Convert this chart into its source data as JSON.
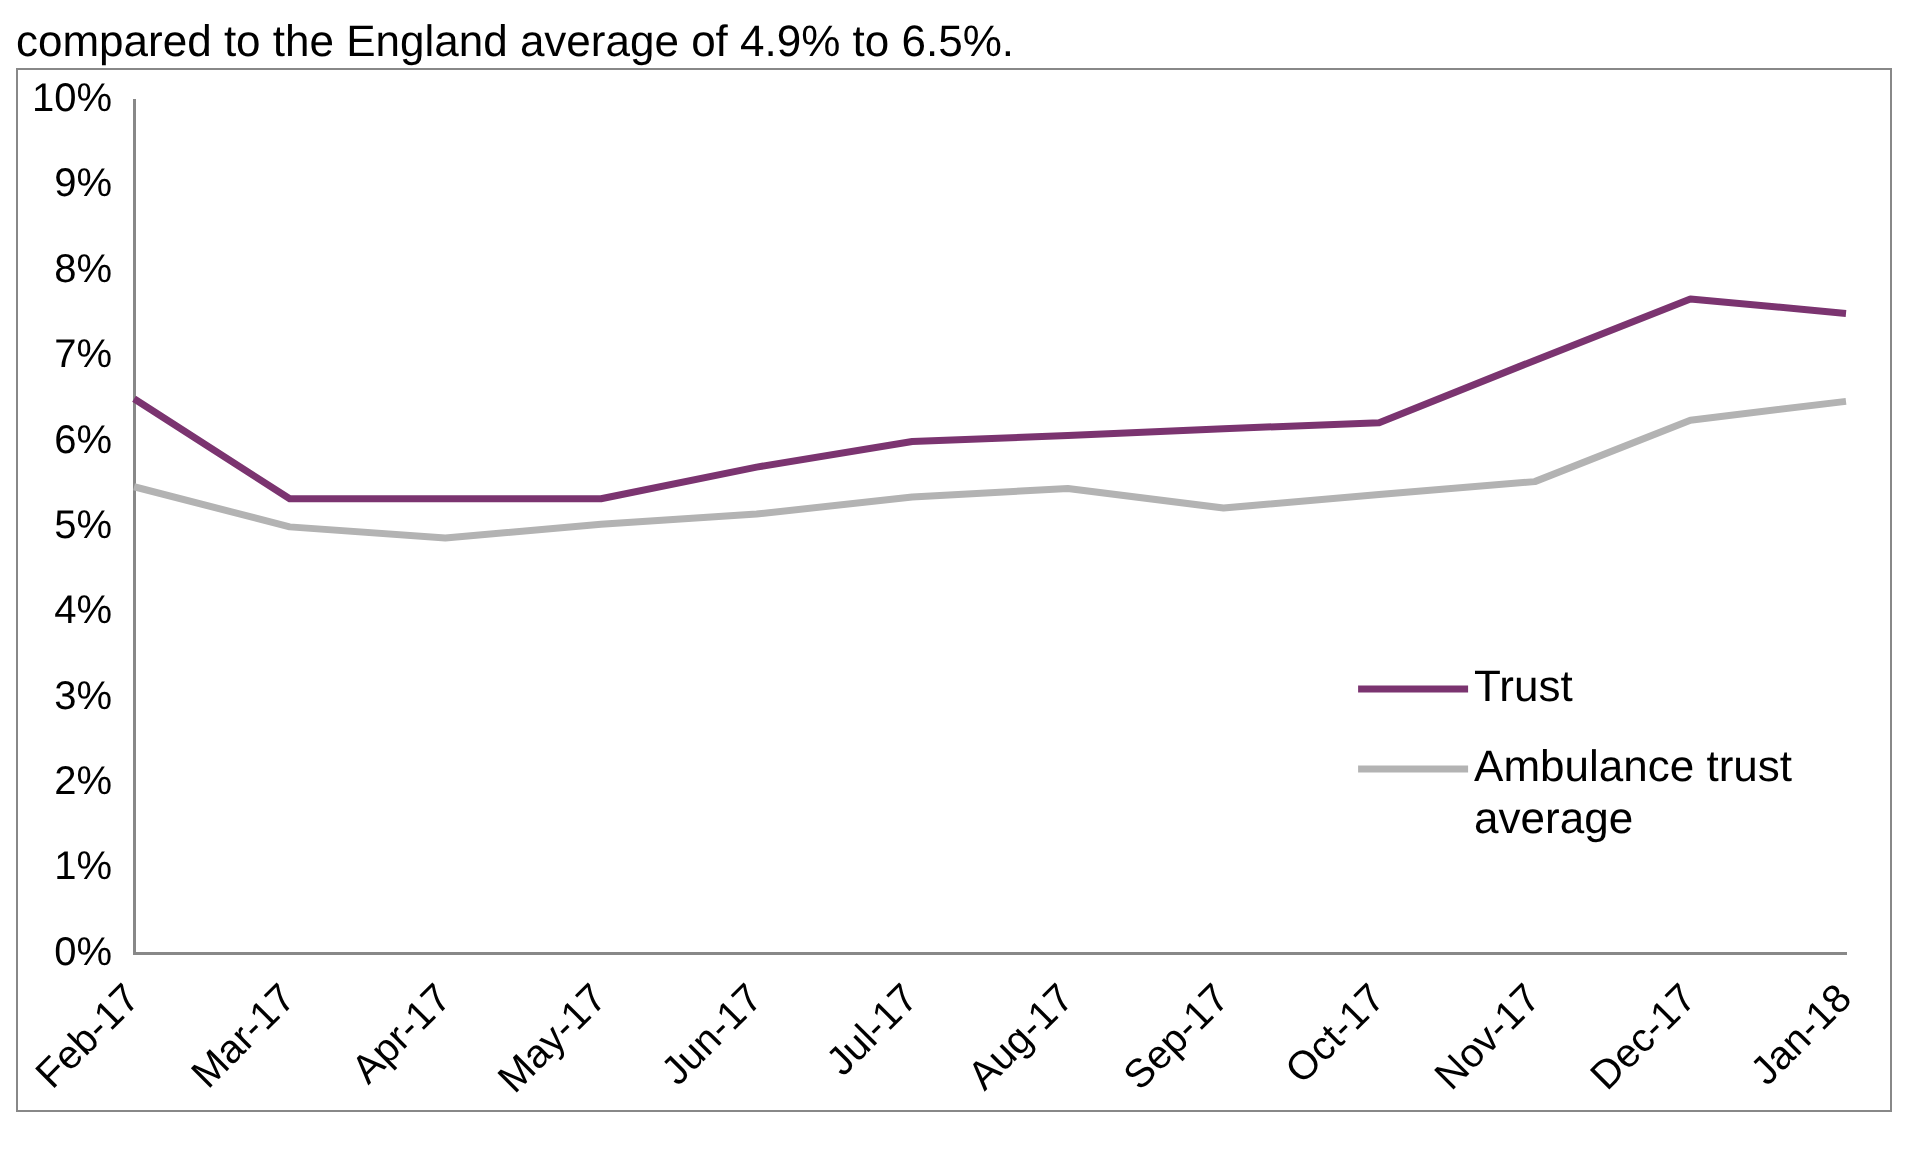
{
  "chart_data": {
    "type": "line",
    "annotations": [
      "compared to the England average of 4.9% to 6.5%."
    ],
    "categories": [
      "Feb-17",
      "Mar-17",
      "Apr-17",
      "May-17",
      "Jun-17",
      "Jul-17",
      "Aug-17",
      "Sep-17",
      "Oct-17",
      "Nov-17",
      "Dec-17",
      "Jan-18"
    ],
    "series": [
      {
        "name": "Trust",
        "color": "#7b3470",
        "values": [
          6.5,
          5.33,
          5.33,
          5.33,
          5.7,
          6.0,
          6.07,
          6.15,
          6.22,
          6.95,
          7.67,
          7.5
        ]
      },
      {
        "name": "Ambulance trust average",
        "color": "#b3b3b3",
        "values": [
          5.47,
          5.0,
          4.87,
          5.03,
          5.15,
          5.35,
          5.45,
          5.22,
          5.38,
          5.53,
          6.25,
          6.47
        ]
      }
    ],
    "ylim": [
      0,
      10
    ],
    "yticks": [
      {
        "value": 0,
        "label": "0%"
      },
      {
        "value": 1,
        "label": "1%"
      },
      {
        "value": 2,
        "label": "2%"
      },
      {
        "value": 3,
        "label": "3%"
      },
      {
        "value": 4,
        "label": "4%"
      },
      {
        "value": 5,
        "label": "5%"
      },
      {
        "value": 6,
        "label": "6%"
      },
      {
        "value": 7,
        "label": "7%"
      },
      {
        "value": 8,
        "label": "8%"
      },
      {
        "value": 9,
        "label": "9%"
      },
      {
        "value": 10,
        "label": "10%"
      }
    ],
    "grid": false,
    "legend": "right",
    "marker": "none",
    "line_style": "solid"
  }
}
